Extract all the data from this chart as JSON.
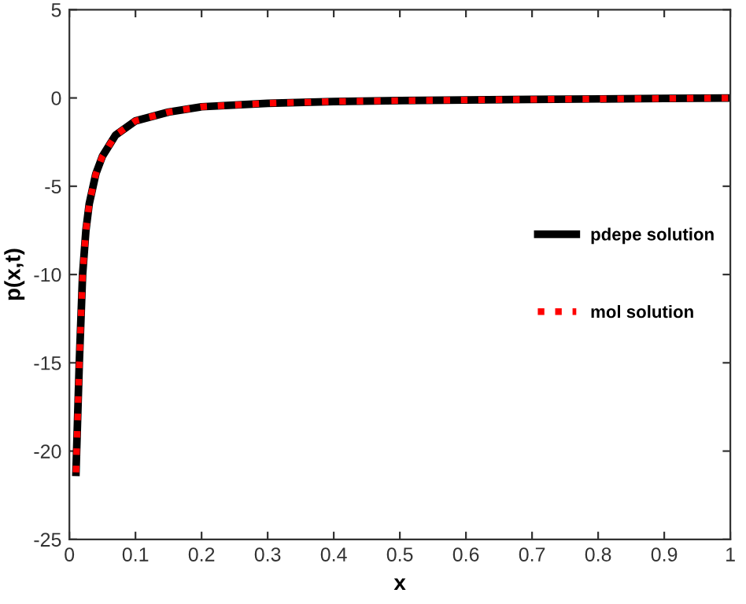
{
  "chart_data": {
    "type": "line",
    "xlabel": "x",
    "ylabel": "p(x,t)",
    "xlim": [
      0,
      1
    ],
    "ylim": [
      -25,
      5
    ],
    "xticks": [
      0,
      0.1,
      0.2,
      0.3,
      0.4,
      0.5,
      0.6,
      0.7,
      0.8,
      0.9,
      1
    ],
    "yticks": [
      -25,
      -20,
      -15,
      -10,
      -5,
      0,
      5
    ],
    "x": [
      0.01,
      0.015,
      0.02,
      0.025,
      0.03,
      0.04,
      0.05,
      0.07,
      0.1,
      0.15,
      0.2,
      0.3,
      0.4,
      0.5,
      0.7,
      0.9,
      1.0
    ],
    "series": [
      {
        "name": "pdepe solution",
        "color": "#000000",
        "line_style": "solid",
        "values": [
          -21.2,
          -15,
          -10,
          -7.5,
          -6,
          -4.3,
          -3.3,
          -2.1,
          -1.3,
          -0.8,
          -0.5,
          -0.3,
          -0.2,
          -0.15,
          -0.08,
          -0.03,
          0
        ]
      },
      {
        "name": "mol solution",
        "color": "#ff0000",
        "line_style": "dotted",
        "values": [
          -21.2,
          -15,
          -10,
          -7.5,
          -6,
          -4.3,
          -3.3,
          -2.1,
          -1.3,
          -0.8,
          -0.5,
          -0.3,
          -0.2,
          -0.15,
          -0.08,
          -0.03,
          0
        ]
      }
    ],
    "legend": "right",
    "grid": false
  }
}
